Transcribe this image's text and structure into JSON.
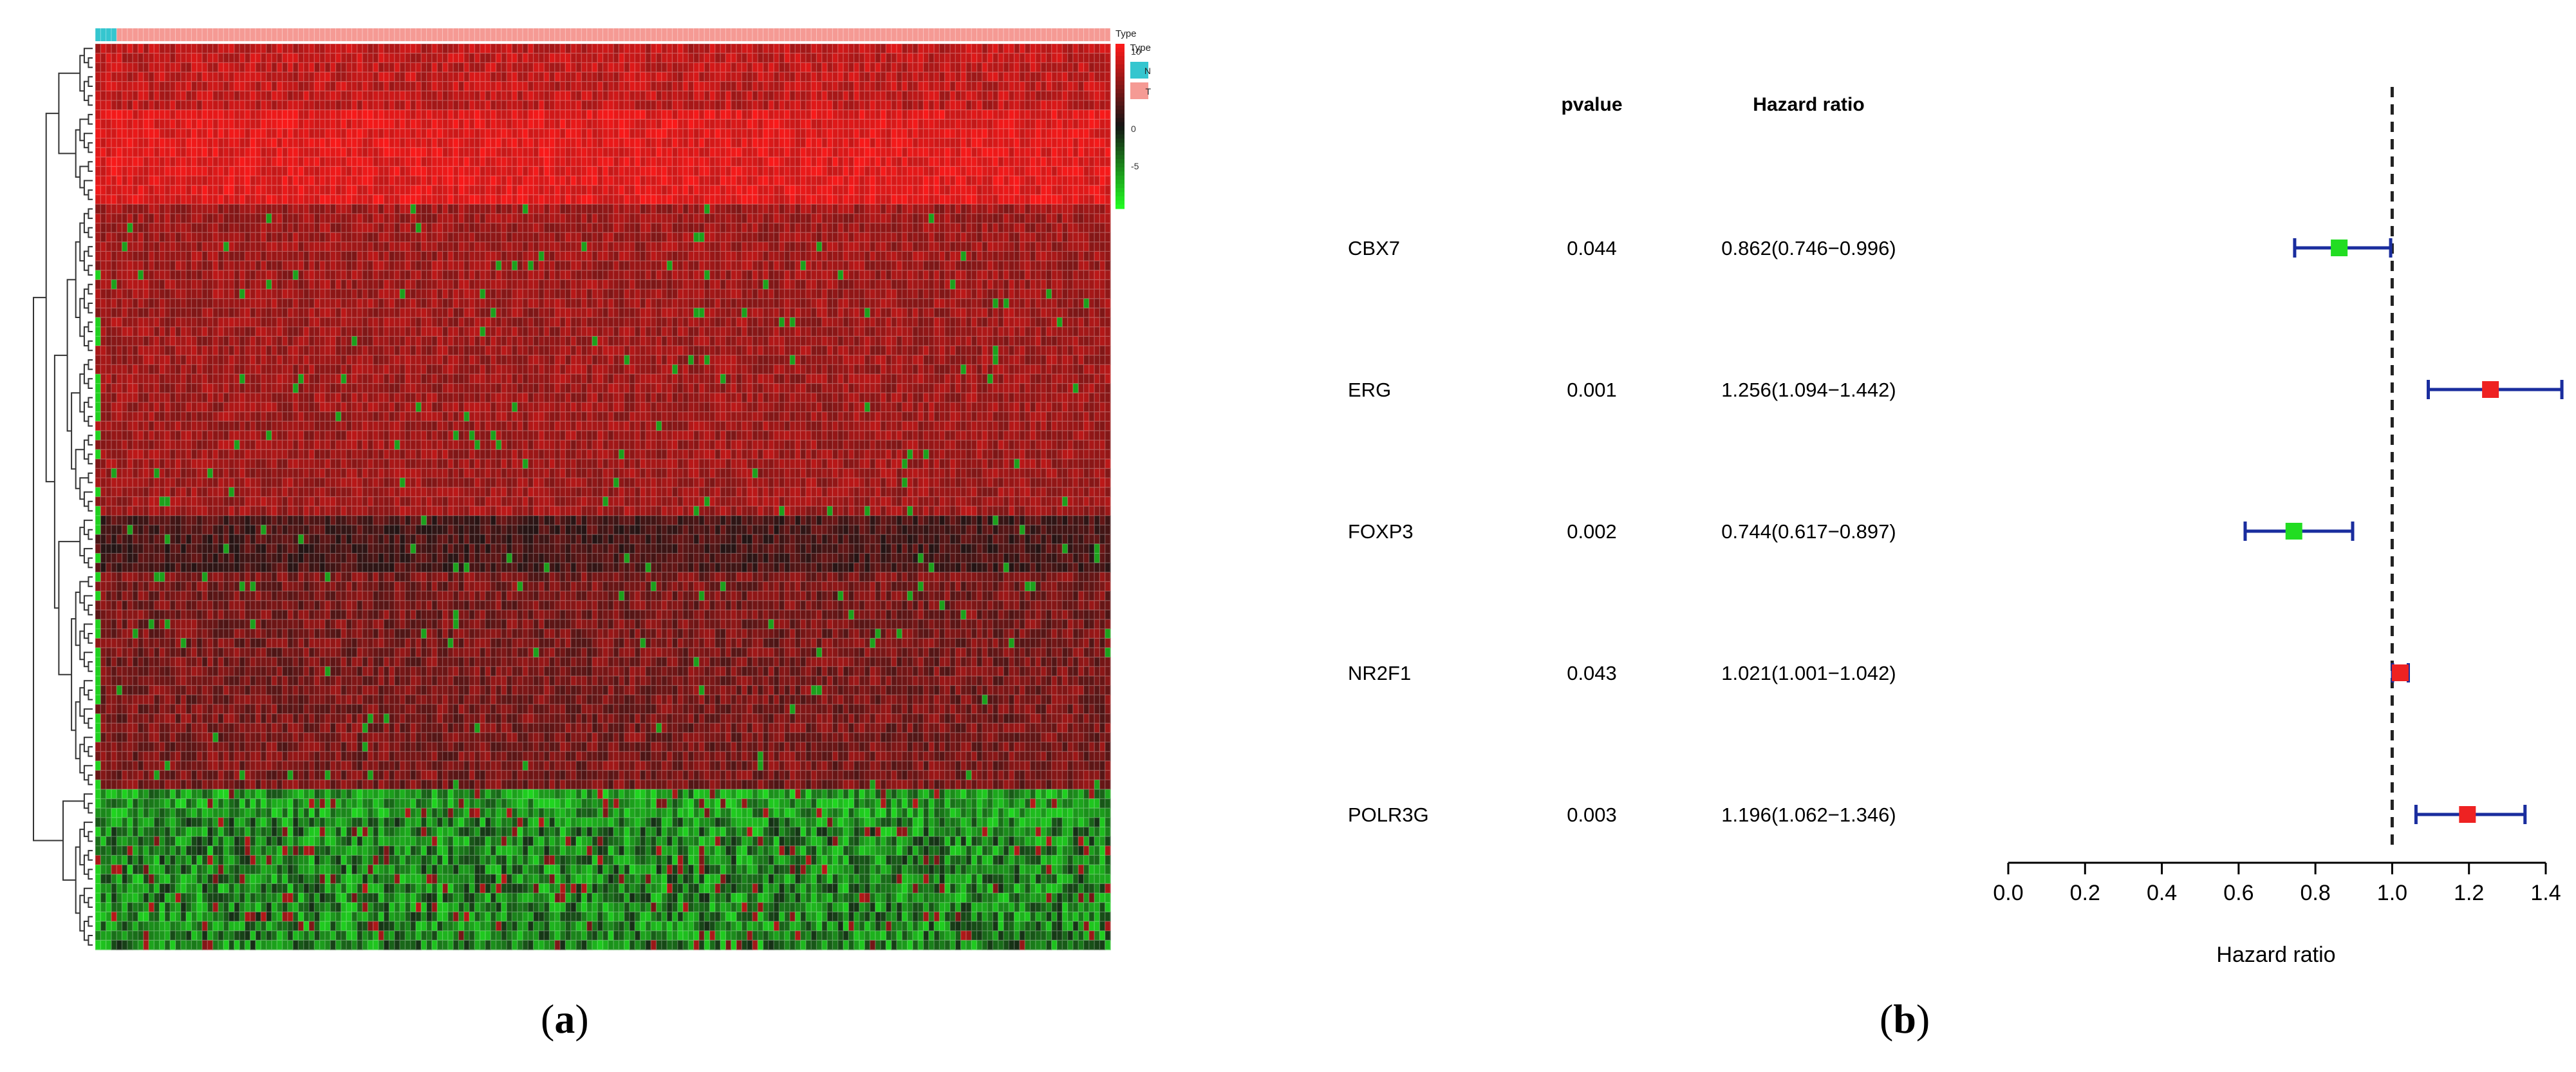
{
  "panels": {
    "a": {
      "open": "(",
      "letter": "a",
      "close": ")"
    },
    "b": {
      "open": "(",
      "letter": "b",
      "close": ")"
    }
  },
  "heatmap": {
    "legend_title": "Type",
    "colorbar_title": "Type",
    "colorbar_ticks": [
      "10",
      "5",
      "0",
      "-5"
    ],
    "groups": [
      {
        "label": "N",
        "color": "#35c6cf"
      },
      {
        "label": "T",
        "color": "#f59a94"
      }
    ],
    "colors": {
      "high": "#ff1a1a",
      "mid": "#141414",
      "low": "#22ff22"
    }
  },
  "chart_data": {
    "type": "forest",
    "column_headers": {
      "pvalue": "pvalue",
      "hr": "Hazard ratio"
    },
    "genes": [
      {
        "name": "CBX7",
        "pvalue": "0.044",
        "hr_text": "0.862(0.746−0.996)",
        "hr": 0.862,
        "lower": 0.746,
        "upper": 0.996,
        "color": "#22dd22"
      },
      {
        "name": "ERG",
        "pvalue": "0.001",
        "hr_text": "1.256(1.094−1.442)",
        "hr": 1.256,
        "lower": 1.094,
        "upper": 1.442,
        "color": "#ee2222"
      },
      {
        "name": "FOXP3",
        "pvalue": "0.002",
        "hr_text": "0.744(0.617−0.897)",
        "hr": 0.744,
        "lower": 0.617,
        "upper": 0.897,
        "color": "#22dd22"
      },
      {
        "name": "NR2F1",
        "pvalue": "0.043",
        "hr_text": "1.021(1.001−1.042)",
        "hr": 1.021,
        "lower": 1.001,
        "upper": 1.042,
        "color": "#ee2222"
      },
      {
        "name": "POLR3G",
        "pvalue": "0.003",
        "hr_text": "1.196(1.062−1.346)",
        "hr": 1.196,
        "lower": 1.062,
        "upper": 1.346,
        "color": "#ee2222"
      }
    ],
    "xlabel": "Hazard ratio",
    "xticks": [
      "0.0",
      "0.2",
      "0.4",
      "0.6",
      "0.8",
      "1.0",
      "1.2",
      "1.4"
    ],
    "xlim": [
      0,
      1.4
    ],
    "reference": 1.0,
    "ci_color": "#1a2d9e"
  }
}
